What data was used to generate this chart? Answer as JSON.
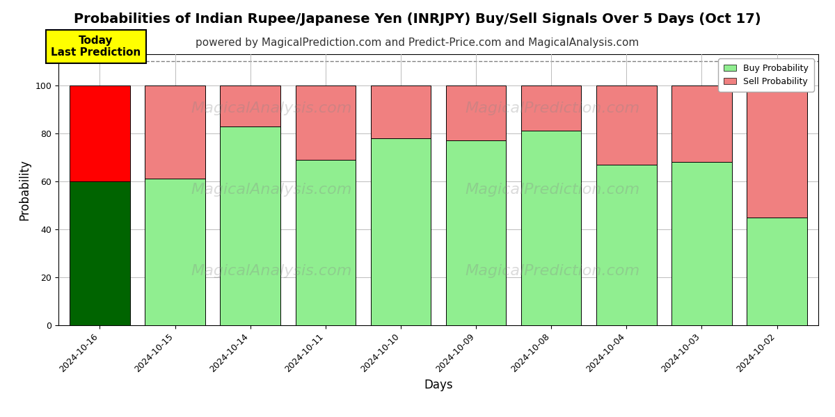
{
  "title": "Probabilities of Indian Rupee/Japanese Yen (INRJPY) Buy/Sell Signals Over 5 Days (Oct 17)",
  "subtitle": "powered by MagicalPrediction.com and Predict-Price.com and MagicalAnalysis.com",
  "xlabel": "Days",
  "ylabel": "Probability",
  "categories": [
    "2024-10-16",
    "2024-10-15",
    "2024-10-14",
    "2024-10-11",
    "2024-10-10",
    "2024-10-09",
    "2024-10-08",
    "2024-10-04",
    "2024-10-03",
    "2024-10-02"
  ],
  "buy_values": [
    60,
    61,
    83,
    69,
    78,
    77,
    81,
    67,
    68,
    45
  ],
  "sell_values": [
    40,
    39,
    17,
    31,
    22,
    23,
    19,
    33,
    32,
    55
  ],
  "buy_color_first": "#006400",
  "buy_color_rest": "#90EE90",
  "sell_color_first": "#FF0000",
  "sell_color_rest": "#F08080",
  "bar_edge_color": "#000000",
  "ylim": [
    0,
    113
  ],
  "yticks": [
    0,
    20,
    40,
    60,
    80,
    100
  ],
  "dashed_line_y": 110,
  "legend_buy_color": "#90EE90",
  "legend_sell_color": "#F08080",
  "today_box_color": "#FFFF00",
  "today_box_text": "Today\nLast Prediction",
  "background_color": "#ffffff",
  "grid_color": "#bbbbbb",
  "title_fontsize": 14,
  "subtitle_fontsize": 11,
  "axis_label_fontsize": 12,
  "tick_fontsize": 9,
  "bar_width": 0.8
}
